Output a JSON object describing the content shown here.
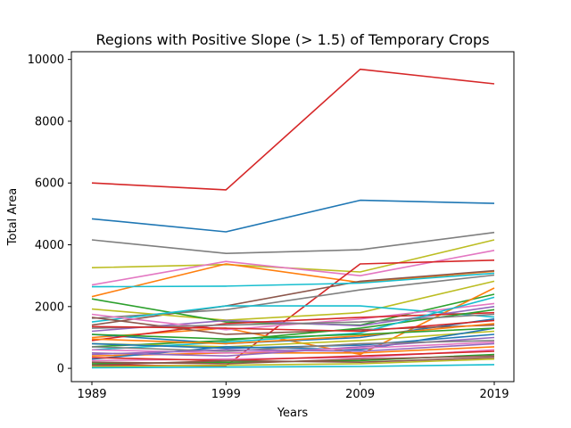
{
  "chart_data": {
    "type": "line",
    "title": "Regions with Positive Slope (> 1.5) of Temporary Crops",
    "xlabel": "Years",
    "ylabel": "Total Area",
    "x": [
      "1989",
      "1999",
      "2009",
      "2019"
    ],
    "x_ticks": [
      "1989",
      "1999",
      "2009",
      "2019"
    ],
    "y_ticks": [
      "0",
      "2000",
      "4000",
      "6000",
      "8000",
      "10000"
    ],
    "ylim": [
      -430,
      10250
    ],
    "grid": false,
    "legend": "none",
    "series": [
      {
        "color": "#d62728",
        "values": [
          6000,
          5780,
          9680,
          9210
        ]
      },
      {
        "color": "#1f77b4",
        "values": [
          4840,
          4420,
          5440,
          5340
        ]
      },
      {
        "color": "#7f7f7f",
        "values": [
          4160,
          3720,
          3840,
          4400
        ]
      },
      {
        "color": "#bcbd22",
        "values": [
          3260,
          3360,
          3120,
          4160
        ]
      },
      {
        "color": "#e377c2",
        "values": [
          2700,
          3460,
          3000,
          3820
        ]
      },
      {
        "color": "#ff7f0e",
        "values": [
          2320,
          3380,
          2780,
          3140
        ]
      },
      {
        "color": "#d62728",
        "values": [
          100,
          80,
          3380,
          3500
        ]
      },
      {
        "color": "#8c564b",
        "values": [
          1400,
          2020,
          2820,
          3160
        ]
      },
      {
        "color": "#17becf",
        "values": [
          2640,
          2660,
          2760,
          3080
        ]
      },
      {
        "color": "#7f7f7f",
        "values": [
          1620,
          1900,
          2540,
          3020
        ]
      },
      {
        "color": "#bcbd22",
        "values": [
          1920,
          1560,
          1800,
          2820
        ]
      },
      {
        "color": "#2ca02c",
        "values": [
          2250,
          1500,
          1400,
          2400
        ]
      },
      {
        "color": "#17becf",
        "values": [
          1500,
          2020,
          2020,
          1660
        ]
      },
      {
        "color": "#ff7f0e",
        "values": [
          1000,
          1300,
          450,
          2600
        ]
      },
      {
        "color": "#9467bd",
        "values": [
          1200,
          1550,
          1380,
          2000
        ]
      },
      {
        "color": "#e377c2",
        "values": [
          1750,
          1250,
          1600,
          2100
        ]
      },
      {
        "color": "#1f77b4",
        "values": [
          1100,
          800,
          1000,
          1600
        ]
      },
      {
        "color": "#d62728",
        "values": [
          900,
          1450,
          1650,
          1800
        ]
      },
      {
        "color": "#8c564b",
        "values": [
          1650,
          1100,
          1250,
          1400
        ]
      },
      {
        "color": "#2ca02c",
        "values": [
          700,
          900,
          1300,
          1900
        ]
      },
      {
        "color": "#bcbd22",
        "values": [
          800,
          700,
          900,
          1200
        ]
      },
      {
        "color": "#17becf",
        "values": [
          600,
          850,
          1150,
          2300
        ]
      },
      {
        "color": "#7f7f7f",
        "values": [
          1300,
          1400,
          1500,
          1750
        ]
      },
      {
        "color": "#ff7f0e",
        "values": [
          400,
          500,
          500,
          700
        ]
      },
      {
        "color": "#1f77b4",
        "values": [
          300,
          700,
          600,
          1300
        ]
      },
      {
        "color": "#9467bd",
        "values": [
          500,
          400,
          700,
          1000
        ]
      },
      {
        "color": "#e377c2",
        "values": [
          250,
          300,
          350,
          600
        ]
      },
      {
        "color": "#2ca02c",
        "values": [
          150,
          200,
          250,
          450
        ]
      },
      {
        "color": "#d62728",
        "values": [
          350,
          250,
          400,
          550
        ]
      },
      {
        "color": "#8c564b",
        "values": [
          200,
          150,
          300,
          400
        ]
      },
      {
        "color": "#bcbd22",
        "values": [
          50,
          100,
          150,
          300
        ]
      },
      {
        "color": "#17becf",
        "values": [
          20,
          40,
          60,
          120
        ]
      },
      {
        "color": "#1f77b4",
        "values": [
          800,
          650,
          750,
          1100
        ]
      },
      {
        "color": "#ff7f0e",
        "values": [
          950,
          800,
          1050,
          1450
        ]
      },
      {
        "color": "#7f7f7f",
        "values": [
          700,
          550,
          800,
          900
        ]
      },
      {
        "color": "#2ca02c",
        "values": [
          1100,
          950,
          1100,
          1300
        ]
      },
      {
        "color": "#e377c2",
        "values": [
          600,
          500,
          650,
          850
        ]
      },
      {
        "color": "#9467bd",
        "values": [
          450,
          600,
          550,
          800
        ]
      },
      {
        "color": "#d62728",
        "values": [
          1350,
          1300,
          1200,
          1550
        ]
      },
      {
        "color": "#8c564b",
        "values": [
          100,
          250,
          200,
          350
        ]
      }
    ]
  }
}
